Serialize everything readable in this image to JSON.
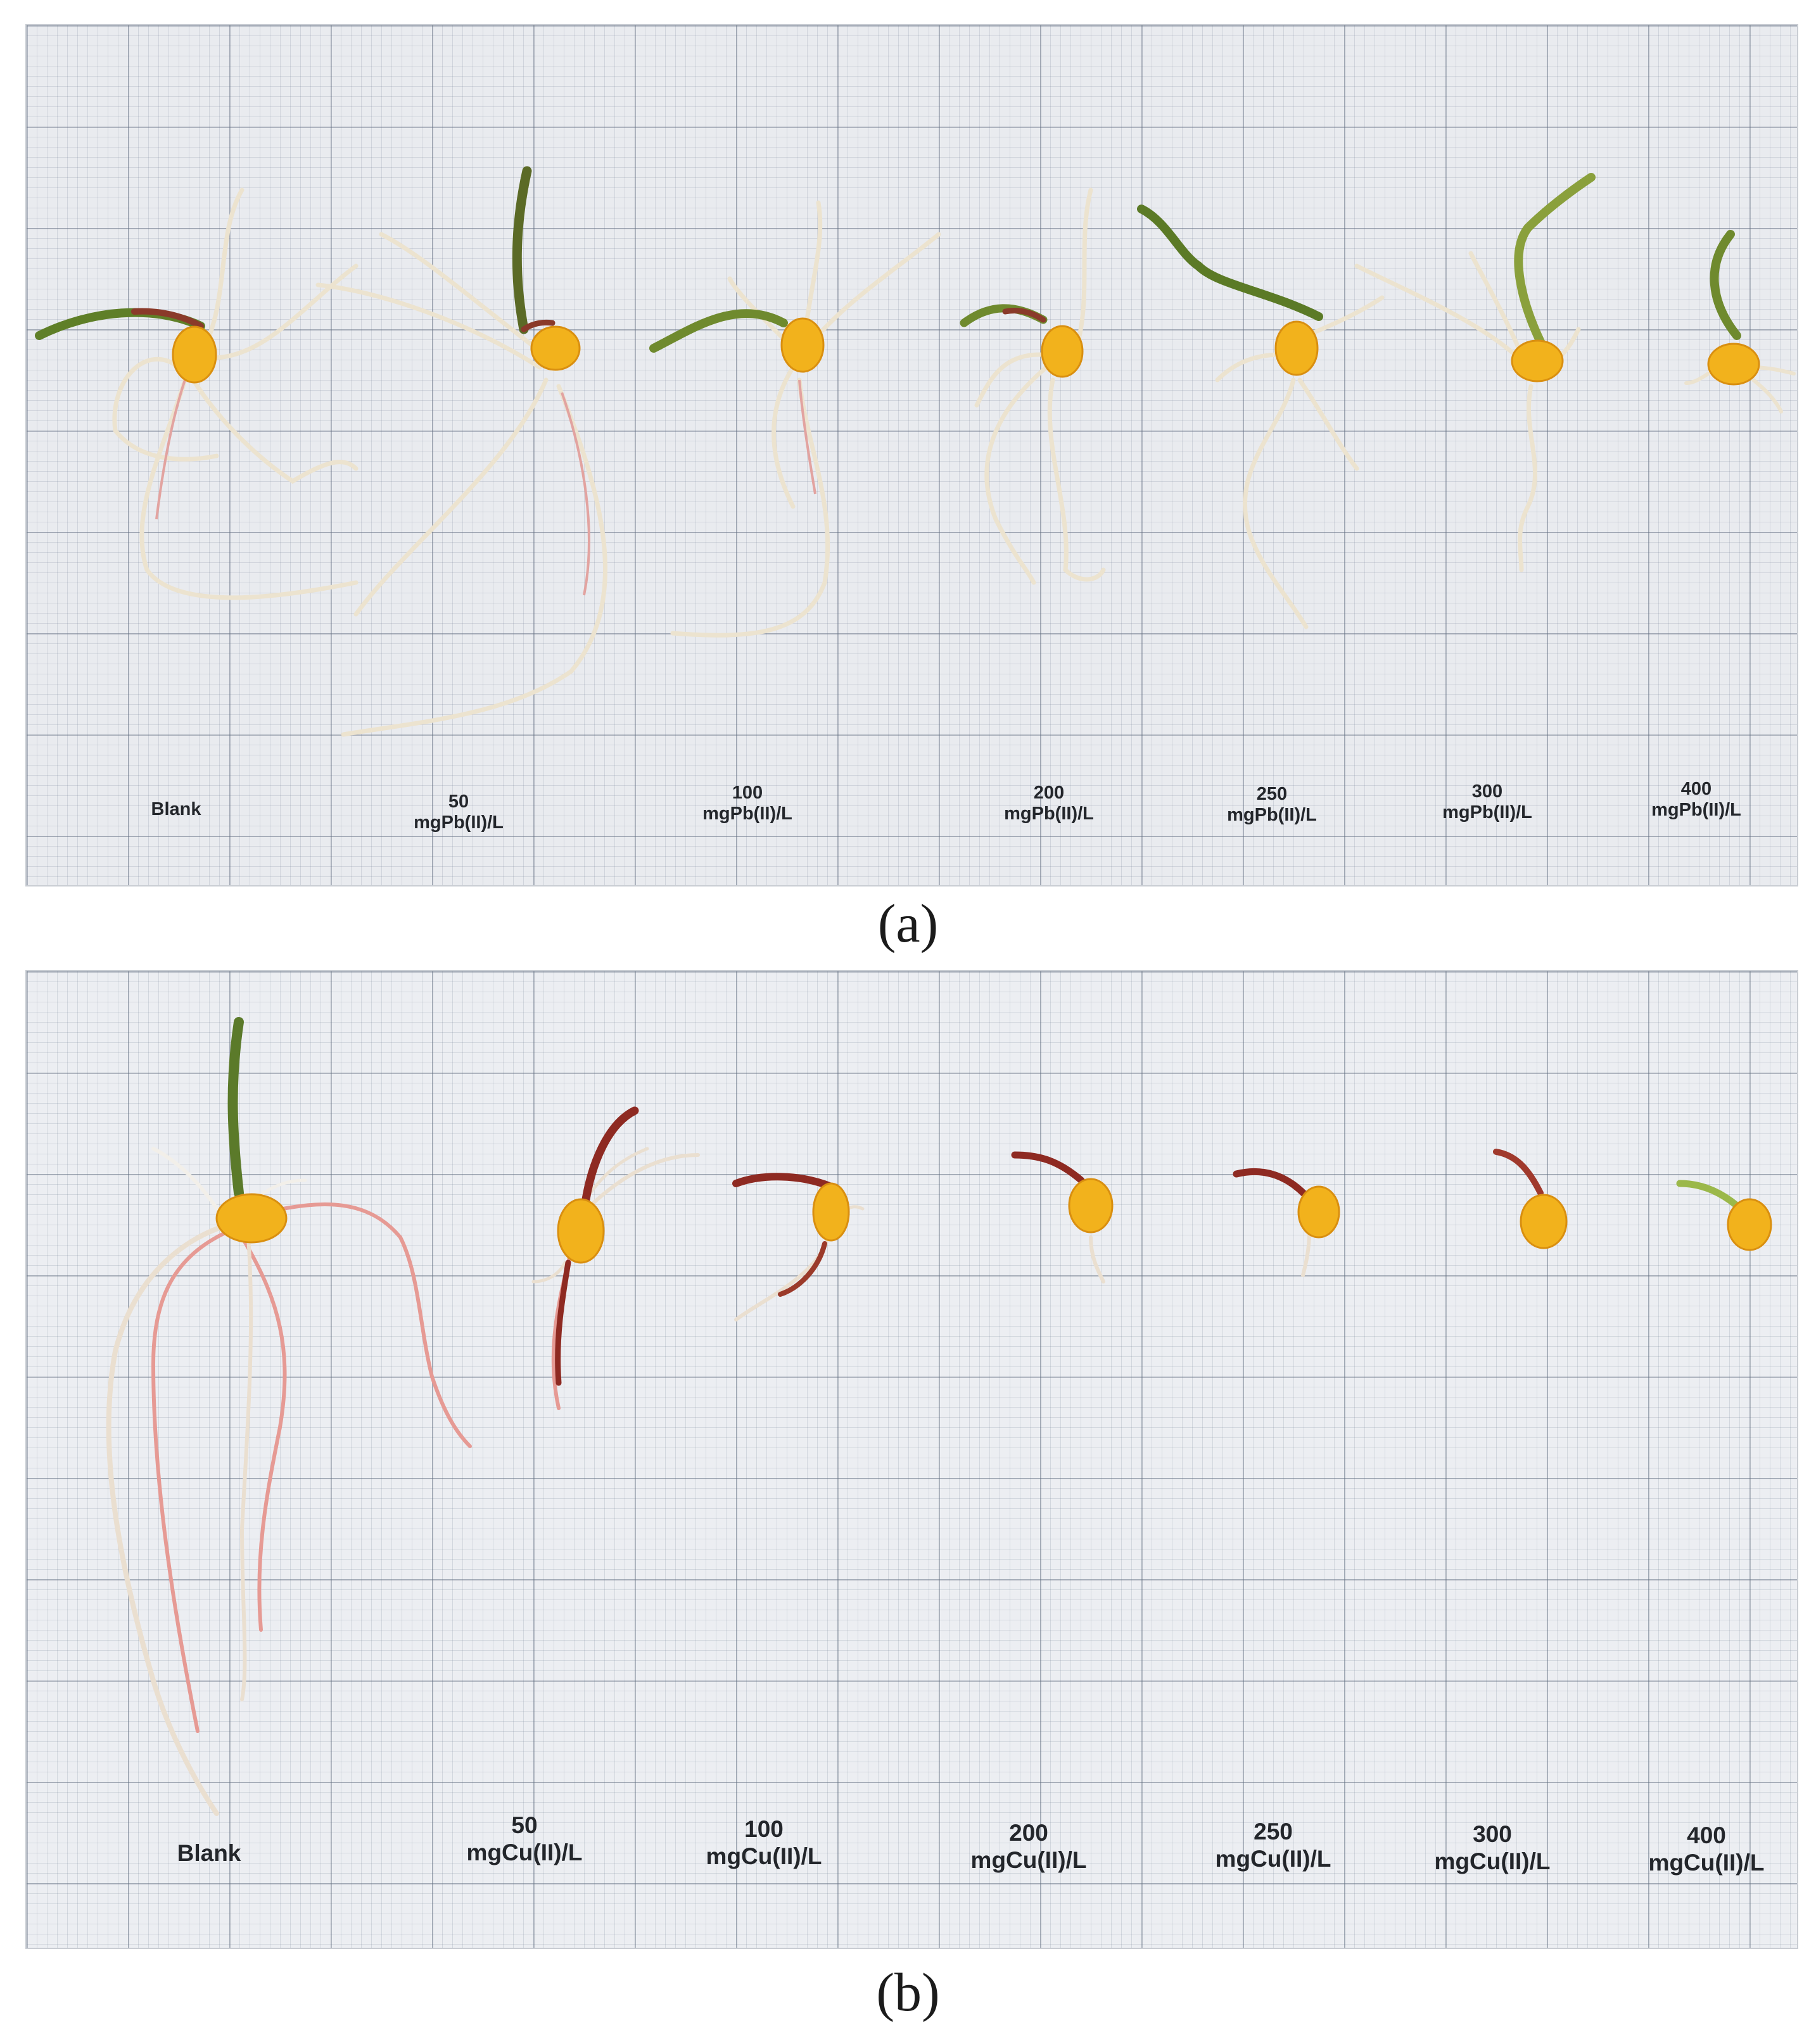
{
  "figure": {
    "panels": [
      {
        "id": "a",
        "caption": "(a)",
        "colors": {
          "paper": "#e9ebef",
          "grid": "#606c7e",
          "kernel": "#f2b21c",
          "shoot": "#6f8a2e",
          "root": "#ece3cf"
        },
        "labels": [
          {
            "line1": "Blank",
            "line2": ""
          },
          {
            "line1": "50",
            "line2": "mgPb(II)/L"
          },
          {
            "line1": "100",
            "line2": "mgPb(II)/L"
          },
          {
            "line1": "200",
            "line2": "mgPb(II)/L"
          },
          {
            "line1": "250",
            "line2": "mgPb(II)/L"
          },
          {
            "line1": "300",
            "line2": "mgPb(II)/L"
          },
          {
            "line1": "400",
            "line2": "mgPb(II)/L"
          }
        ]
      },
      {
        "id": "b",
        "caption": "(b)",
        "colors": {
          "paper": "#eceef2",
          "grid": "#606c7e",
          "kernel": "#f2b21c",
          "shoot": "#8e2a22",
          "root": "#e69a94"
        },
        "labels": [
          {
            "line1": "Blank",
            "line2": ""
          },
          {
            "line1": "50",
            "line2": "mgCu(II)/L"
          },
          {
            "line1": "100",
            "line2": "mgCu(II)/L"
          },
          {
            "line1": "200",
            "line2": "mgCu(II)/L"
          },
          {
            "line1": "250",
            "line2": "mgCu(II)/L"
          },
          {
            "line1": "300",
            "line2": "mgCu(II)/L"
          },
          {
            "line1": "400",
            "line2": "mgCu(II)/L"
          }
        ]
      }
    ]
  }
}
